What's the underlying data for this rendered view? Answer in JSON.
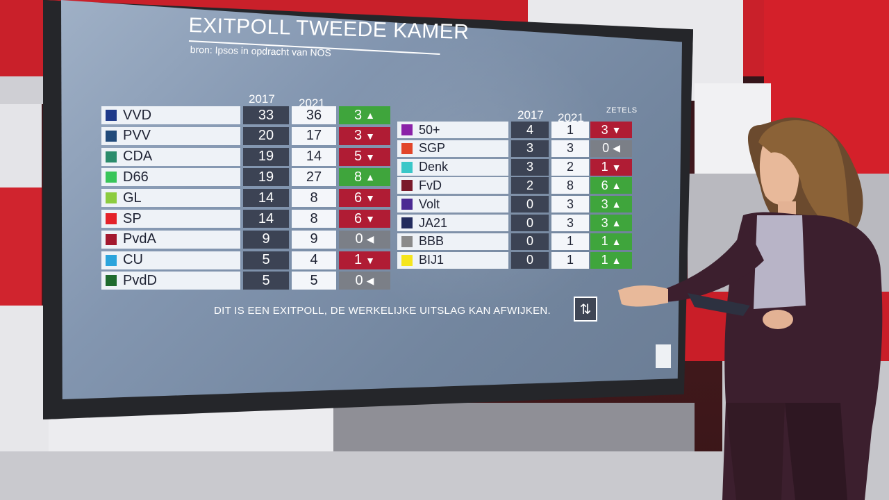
{
  "screen": {
    "title": "EXITPOLL TWEEDE KAMER",
    "source": "bron: Ipsos in opdracht van NOS",
    "notice": "DIT IS EEN EXITPOLL, DE WERKELIJKE UITSLAG KAN AFWIJKEN.",
    "swap_icon": "swap-arrows-icon",
    "left_table": {
      "header_2017": "2017",
      "header_2021": "2021",
      "rows": [
        {
          "party": "VVD",
          "color": "#1f3a8a",
          "y2017": "33",
          "y2021": "36",
          "seats": "3",
          "dir": "up"
        },
        {
          "party": "PVV",
          "color": "#214a7a",
          "y2017": "20",
          "y2021": "17",
          "seats": "3",
          "dir": "down"
        },
        {
          "party": "CDA",
          "color": "#2b8c6c",
          "y2017": "19",
          "y2021": "14",
          "seats": "5",
          "dir": "down"
        },
        {
          "party": "D66",
          "color": "#39c55a",
          "y2017": "19",
          "y2021": "27",
          "seats": "8",
          "dir": "up"
        },
        {
          "party": "GL",
          "color": "#8ccc3f",
          "y2017": "14",
          "y2021": "8",
          "seats": "6",
          "dir": "down"
        },
        {
          "party": "SP",
          "color": "#e42129",
          "y2017": "14",
          "y2021": "8",
          "seats": "6",
          "dir": "down"
        },
        {
          "party": "PvdA",
          "color": "#a3182e",
          "y2017": "9",
          "y2021": "9",
          "seats": "0",
          "dir": "same"
        },
        {
          "party": "CU",
          "color": "#2ba4dc",
          "y2017": "5",
          "y2021": "4",
          "seats": "1",
          "dir": "down"
        },
        {
          "party": "PvdD",
          "color": "#1f6b2e",
          "y2017": "5",
          "y2021": "5",
          "seats": "0",
          "dir": "same"
        }
      ]
    },
    "right_table": {
      "header_2017": "2017",
      "header_2021": "2021",
      "header_seats": "ZETELS",
      "rows": [
        {
          "party": "50+",
          "color": "#8b22a8",
          "y2017": "4",
          "y2021": "1",
          "seats": "3",
          "dir": "down"
        },
        {
          "party": "SGP",
          "color": "#e2462a",
          "y2017": "3",
          "y2021": "3",
          "seats": "0",
          "dir": "same"
        },
        {
          "party": "Denk",
          "color": "#3ac7c8",
          "y2017": "3",
          "y2021": "2",
          "seats": "1",
          "dir": "down"
        },
        {
          "party": "FvD",
          "color": "#7a1a2b",
          "y2017": "2",
          "y2021": "8",
          "seats": "6",
          "dir": "up"
        },
        {
          "party": "Volt",
          "color": "#4b2a93",
          "y2017": "0",
          "y2021": "3",
          "seats": "3",
          "dir": "up"
        },
        {
          "party": "JA21",
          "color": "#232c5e",
          "y2017": "0",
          "y2021": "3",
          "seats": "3",
          "dir": "up"
        },
        {
          "party": "BBB",
          "color": "#8a8a8a",
          "y2017": "0",
          "y2021": "1",
          "seats": "1",
          "dir": "up"
        },
        {
          "party": "BIJ1",
          "color": "#f5e51d",
          "y2017": "0",
          "y2021": "1",
          "seats": "1",
          "dir": "up"
        }
      ]
    },
    "status_colors": {
      "up": "#3fa53c",
      "down": "#b01c34",
      "same": "#7b7f87"
    },
    "direction_icons": {
      "up": "▲",
      "down": "▼",
      "same": "◀"
    }
  }
}
